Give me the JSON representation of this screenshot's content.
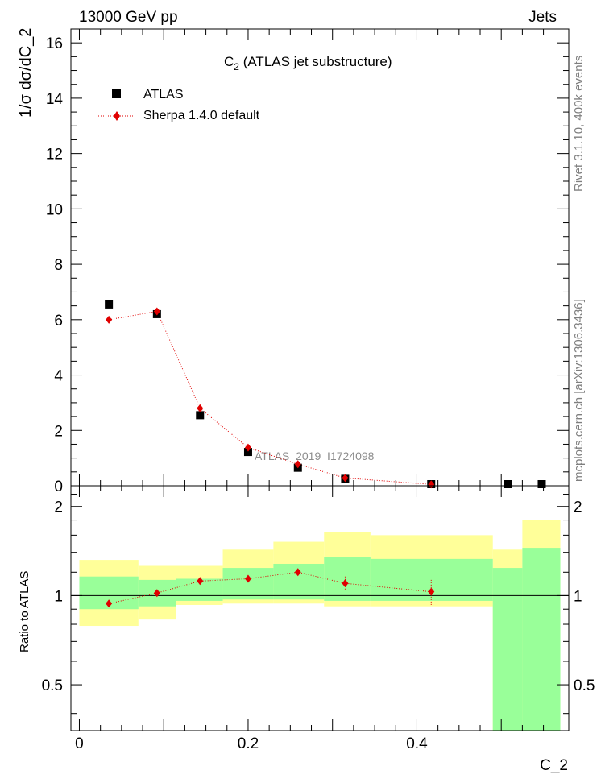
{
  "header": {
    "energy": "13000 GeV pp",
    "process": "Jets"
  },
  "side": {
    "rivet": "Rivet 3.1.10,  400k events",
    "mcplots": "mcplots.cern.ch [arXiv:1306.3436]"
  },
  "chart_data": [
    {
      "type": "scatter",
      "title_main": "C",
      "title_sub": "2",
      "title_rest": " (ATLAS jet substructure)",
      "ylabel": "1/σ dσ/dC_2",
      "xlabel": "C_2",
      "watermark": "ATLAS_2019_I1724098",
      "xlim": [
        -0.01,
        0.58
      ],
      "ylim": [
        0,
        16.5
      ],
      "yticks": [
        0,
        2,
        4,
        6,
        8,
        10,
        12,
        14,
        16
      ],
      "bins": [
        0,
        0.07,
        0.115,
        0.17,
        0.23,
        0.29,
        0.345,
        0.49,
        0.525,
        0.57
      ],
      "legend": [
        {
          "name": "ATLAS",
          "marker": "square",
          "color": "#000000"
        },
        {
          "name": "Sherpa 1.4.0 default",
          "marker": "diamond",
          "color": "#e00000"
        }
      ],
      "series": [
        {
          "name": "ATLAS",
          "x": [
            0.035,
            0.092,
            0.143,
            0.2,
            0.259,
            0.315,
            0.417,
            0.508,
            0.548
          ],
          "y": [
            6.55,
            6.2,
            2.55,
            1.22,
            0.65,
            0.25,
            0.04,
            0.01,
            0.0
          ]
        },
        {
          "name": "Sherpa 1.4.0 default",
          "x": [
            0.035,
            0.092,
            0.143,
            0.2,
            0.259,
            0.315,
            0.417
          ],
          "y": [
            6.0,
            6.3,
            2.8,
            1.38,
            0.78,
            0.28,
            0.05
          ]
        }
      ]
    },
    {
      "type": "scatter",
      "ylabel": "Ratio to ATLAS",
      "xlim": [
        -0.01,
        0.58
      ],
      "ylim": [
        0.35,
        2.35
      ],
      "yticks": [
        0.5,
        1,
        2
      ],
      "ytick_labels": [
        "0.5",
        "1",
        "2"
      ],
      "xticks": [
        0,
        0.2,
        0.4
      ],
      "xtick_labels": [
        "0",
        "0.2",
        "0.4"
      ],
      "bands": {
        "bins": [
          0,
          0.07,
          0.115,
          0.17,
          0.23,
          0.29,
          0.345,
          0.49,
          0.525,
          0.57
        ],
        "yellow_lo": [
          0.79,
          0.83,
          0.93,
          0.94,
          0.94,
          0.92,
          0.92,
          0.35,
          0.35
        ],
        "yellow_hi": [
          1.32,
          1.26,
          1.26,
          1.43,
          1.52,
          1.64,
          1.6,
          1.43,
          1.8
        ],
        "green_lo": [
          0.9,
          0.92,
          0.96,
          0.97,
          0.97,
          0.96,
          0.96,
          0.35,
          0.35
        ],
        "green_hi": [
          1.16,
          1.13,
          1.14,
          1.24,
          1.28,
          1.35,
          1.33,
          1.24,
          1.45
        ]
      },
      "series": [
        {
          "name": "Sherpa 1.4.0 default",
          "x": [
            0.035,
            0.092,
            0.143,
            0.2,
            0.259,
            0.315,
            0.417
          ],
          "y": [
            0.94,
            1.02,
            1.12,
            1.14,
            1.2,
            1.1,
            1.03
          ],
          "err_lo": [
            0.01,
            0.01,
            0.015,
            0.015,
            0.03,
            0.06,
            0.1
          ],
          "err_hi": [
            0.01,
            0.01,
            0.015,
            0.015,
            0.03,
            0.06,
            0.1
          ]
        }
      ]
    }
  ]
}
